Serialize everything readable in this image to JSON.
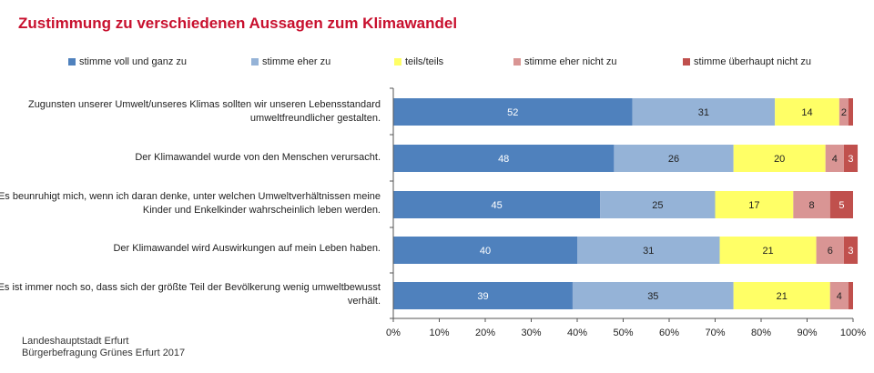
{
  "title": "Zustimmung zu verschiedenen Aussagen zum Klimawandel",
  "footer": {
    "line1": "Landeshauptstadt Erfurt",
    "line2": "Bürgerbefragung Grünes Erfurt 2017"
  },
  "colors": {
    "title": "#c8102e",
    "series": [
      "#4f81bd",
      "#95b3d7",
      "#ffff66",
      "#d99594",
      "#c0504d"
    ],
    "label_text": [
      "#ffffff",
      "#222222",
      "#222222",
      "#222222",
      "#ffffff"
    ]
  },
  "chart_data": {
    "type": "bar",
    "orientation": "horizontal",
    "stacked": true,
    "title": "Zustimmung zu verschiedenen Aussagen zum Klimawandel",
    "categories": [
      "Zugunsten unserer Umwelt/unseres Klimas sollten wir unseren Lebensstandard umweltfreundlicher gestalten.",
      "Der Klimawandel wurde von den Menschen verursacht.",
      "Es beunruhigt mich, wenn ich daran denke, unter welchen Umweltverhältnissen meine Kinder und Enkelkinder wahrscheinlich leben werden.",
      "Der Klimawandel wird Auswirkungen auf mein Leben haben.",
      "Es ist immer noch so, dass sich der größte Teil der Bevölkerung wenig umweltbewusst verhält."
    ],
    "series": [
      {
        "name": "stimme voll und ganz zu",
        "values": [
          52,
          48,
          45,
          40,
          39
        ]
      },
      {
        "name": "stimme eher zu",
        "values": [
          31,
          26,
          25,
          31,
          35
        ]
      },
      {
        "name": "teils/teils",
        "values": [
          14,
          20,
          17,
          21,
          21
        ]
      },
      {
        "name": "stimme eher nicht zu",
        "values": [
          2,
          4,
          8,
          6,
          4
        ]
      },
      {
        "name": "stimme überhaupt nicht zu",
        "values": [
          1,
          3,
          5,
          3,
          1
        ]
      }
    ],
    "data_labels": [
      [
        "52",
        "31",
        "14",
        "2",
        ""
      ],
      [
        "48",
        "26",
        "20",
        "4",
        "3"
      ],
      [
        "45",
        "25",
        "17",
        "8",
        "5"
      ],
      [
        "40",
        "31",
        "21",
        "6",
        "3"
      ],
      [
        "39",
        "35",
        "21",
        "4",
        ""
      ]
    ],
    "x_ticks": [
      "0%",
      "10%",
      "20%",
      "30%",
      "40%",
      "50%",
      "60%",
      "70%",
      "80%",
      "90%",
      "100%"
    ],
    "xlim": [
      0,
      100
    ],
    "grid": false,
    "legend_position": "top"
  }
}
